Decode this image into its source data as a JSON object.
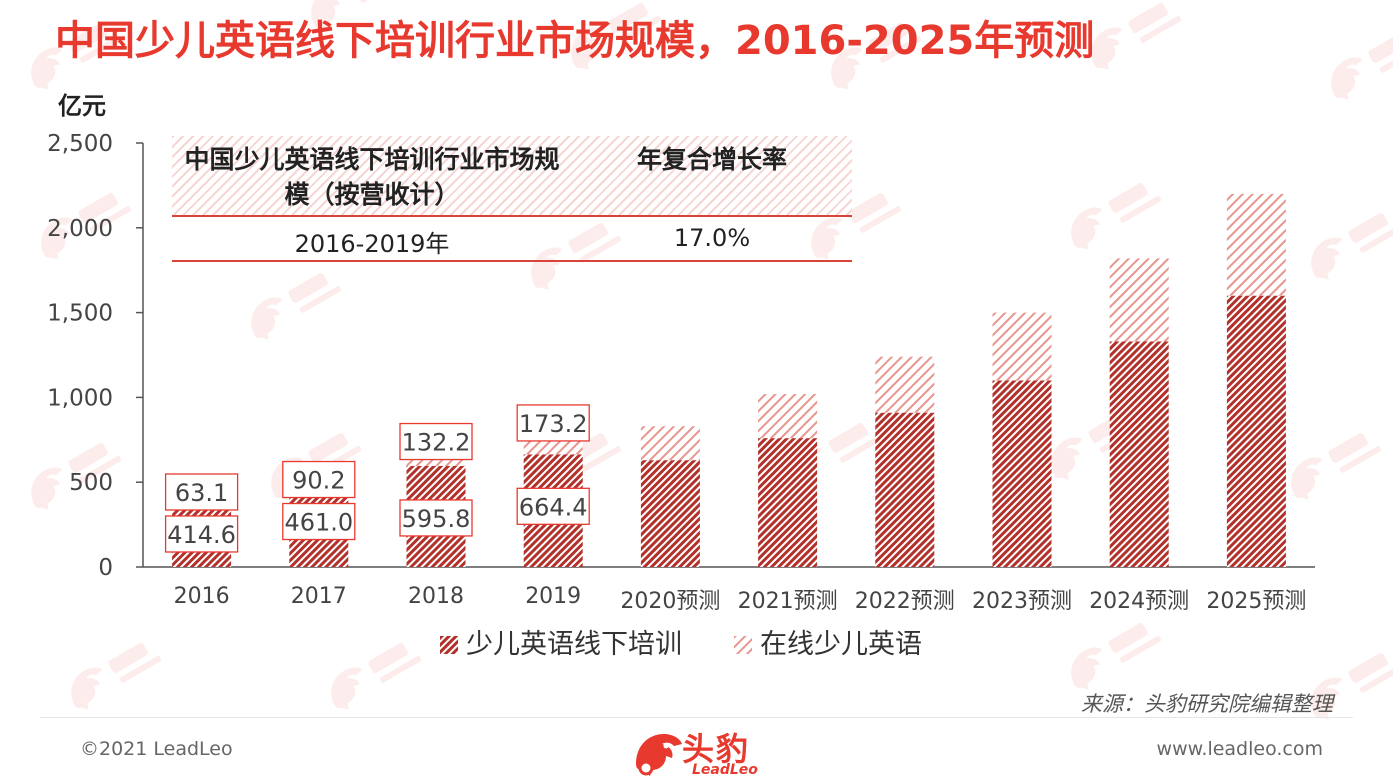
{
  "header": {
    "title": "中国少儿英语线下培训行业市场规模，2016-2025年预测",
    "unit": "亿元"
  },
  "cagr_table": {
    "header_left": "中国少儿英语线下培训行业市场规模（按营收计）",
    "header_right": "年复合增长率",
    "row_period": "2016-2019年",
    "row_rate": "17.0%"
  },
  "chart_data": {
    "type": "bar",
    "stacked": true,
    "categories": [
      "2016",
      "2017",
      "2018",
      "2019",
      "2020预测",
      "2021预测",
      "2022预测",
      "2023预测",
      "2024预测",
      "2025预测"
    ],
    "series": [
      {
        "name": "少儿英语线下培训",
        "values": [
          414.6,
          461.0,
          595.8,
          664.4,
          630,
          760,
          910,
          1100,
          1330,
          1600
        ],
        "color": "#b3312b",
        "pattern": "dense-hatch"
      },
      {
        "name": "在线少儿英语",
        "values": [
          63.1,
          90.2,
          132.2,
          173.2,
          200,
          260,
          330,
          400,
          490,
          600
        ],
        "color": "#e8958e",
        "pattern": "light-hatch"
      }
    ],
    "data_labels": [
      {
        "index": 0,
        "bottom": "414.6",
        "top": "63.1"
      },
      {
        "index": 1,
        "bottom": "461.0",
        "top": "90.2"
      },
      {
        "index": 2,
        "bottom": "595.8",
        "top": "132.2"
      },
      {
        "index": 3,
        "bottom": "664.4",
        "top": "173.2"
      }
    ],
    "ylim": [
      0,
      2500
    ],
    "yticks": [
      "0",
      "500",
      "1,000",
      "1,500",
      "2,000",
      "2,500"
    ],
    "ytick_values": [
      0,
      500,
      1000,
      1500,
      2000,
      2500
    ],
    "legend_position": "bottom",
    "grid": false
  },
  "source": "来源：头豹研究院编辑整理",
  "footer": {
    "copyright": "©2021 LeadLeo",
    "website": "www.leadleo.com",
    "brand_cn": "头豹",
    "brand_en": "LeadLeo"
  }
}
